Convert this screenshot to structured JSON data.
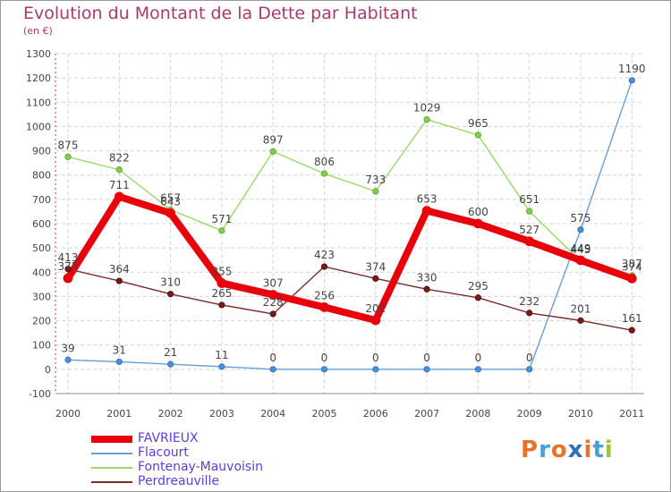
{
  "title": "Evolution du Montant de la Dette par Habitant",
  "subtitle": "(en €)",
  "brand": {
    "text": "Proxiti",
    "letters": [
      {
        "ch": "P",
        "color": "#e8742a"
      },
      {
        "ch": "r",
        "color": "#4a9fd8"
      },
      {
        "ch": "o",
        "color": "#e8742a"
      },
      {
        "ch": "x",
        "color": "#2f6fb5"
      },
      {
        "ch": "i",
        "color": "#e8742a"
      },
      {
        "ch": "t",
        "color": "#4a9fd8"
      },
      {
        "ch": "i",
        "color": "#9bc43a"
      }
    ]
  },
  "chart_data": {
    "type": "line",
    "title": "Evolution du Montant de la Dette par Habitant",
    "subtitle": "(en €)",
    "x": [
      "2000",
      "2001",
      "2002",
      "2003",
      "2004",
      "2005",
      "2006",
      "2007",
      "2008",
      "2009",
      "2010",
      "2011"
    ],
    "ylim": [
      -100,
      1300
    ],
    "yticks": [
      -100,
      0,
      100,
      200,
      300,
      400,
      500,
      600,
      700,
      800,
      900,
      1000,
      1100,
      1200,
      1300
    ],
    "grid": true,
    "legend_position": "bottom-left",
    "series": [
      {
        "name": "FAVRIEUX",
        "color": "#e8000b",
        "values": [
          375,
          711,
          643,
          355,
          307,
          256,
          202,
          653,
          600,
          527,
          449,
          374
        ],
        "labels": [
          "375",
          "711",
          "643",
          "355",
          "307",
          "256",
          "202",
          "653",
          "600",
          "527",
          "449",
          "374"
        ]
      },
      {
        "name": "Flacourt",
        "color": "#6c9ed6",
        "values": [
          39,
          31,
          21,
          11,
          0,
          0,
          0,
          0,
          0,
          0,
          575,
          1190
        ],
        "labels": [
          "39",
          "31",
          "21",
          "11",
          "0",
          "0",
          "0",
          "0",
          "0",
          "0",
          "575",
          "1190"
        ]
      },
      {
        "name": "Fontenay-Mauvoisin",
        "color": "#9bd86a",
        "values": [
          875,
          822,
          657,
          571,
          897,
          806,
          733,
          1029,
          965,
          651,
          445,
          387
        ],
        "labels": [
          "875",
          "822",
          "657",
          "571",
          "897",
          "806",
          "733",
          "1029",
          "965",
          "651",
          "445",
          "387"
        ]
      },
      {
        "name": "Perdreauville",
        "color": "#7a2a2a",
        "values": [
          413,
          364,
          310,
          265,
          228,
          423,
          374,
          330,
          295,
          232,
          201,
          161
        ],
        "labels": [
          "413",
          "364",
          "310",
          "265",
          "228",
          "423",
          "374",
          "330",
          "295",
          "232",
          "201",
          "161"
        ]
      }
    ]
  }
}
